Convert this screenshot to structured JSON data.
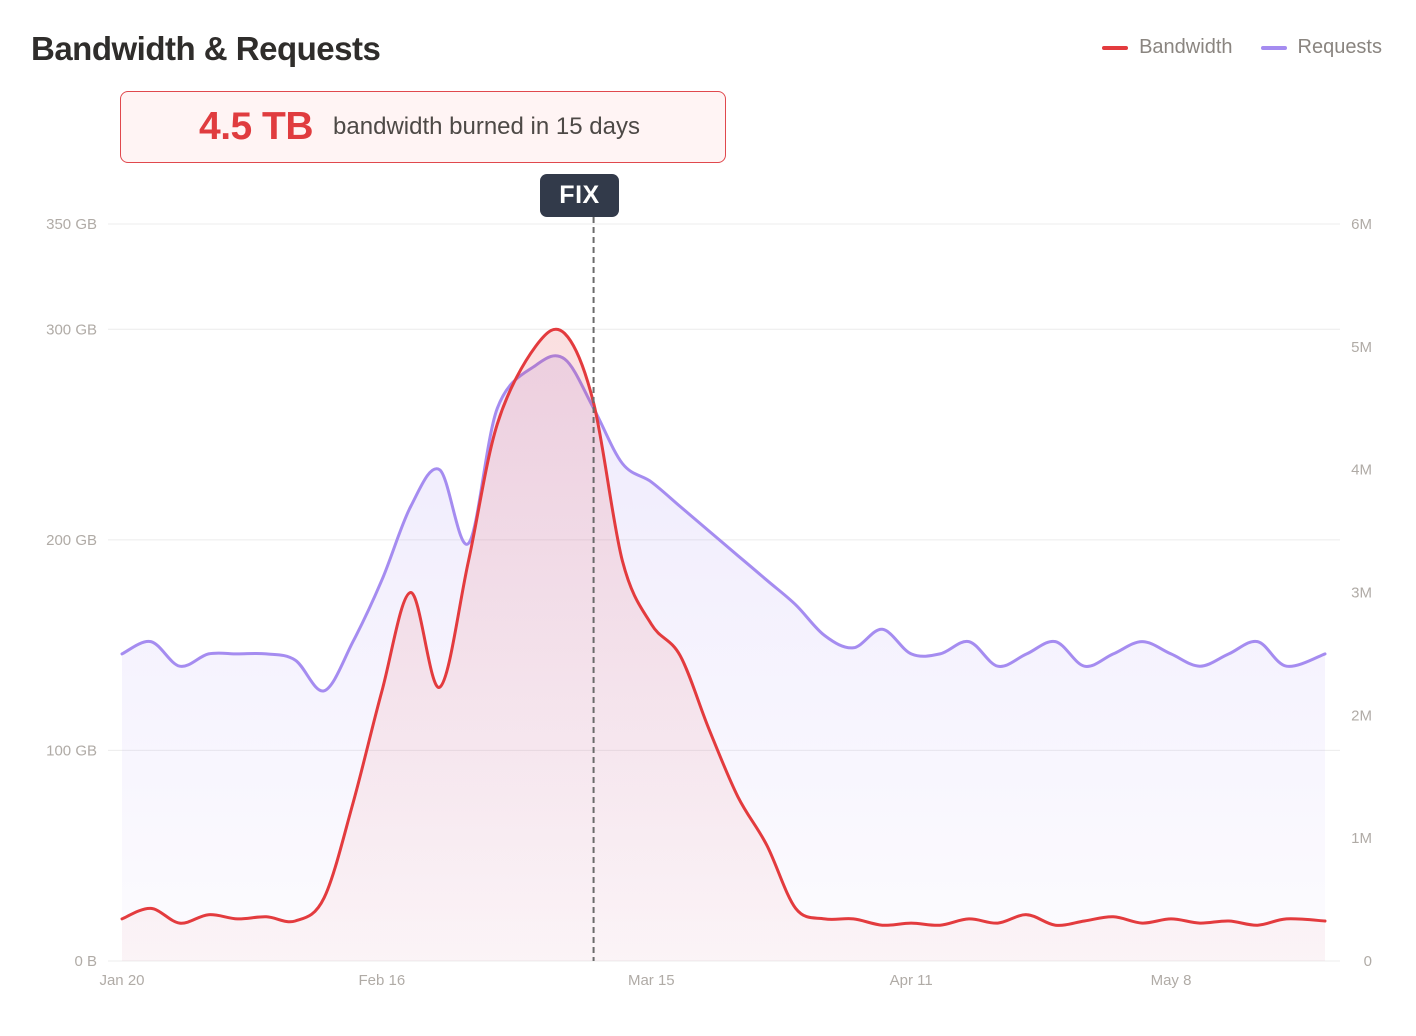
{
  "header": {
    "title": "Bandwidth & Requests"
  },
  "legend": [
    {
      "label": "Bandwidth",
      "color": "#e33b3e"
    },
    {
      "label": "Requests",
      "color": "#a58cf0"
    }
  ],
  "callout": {
    "value": "4.5 TB",
    "text": "bandwidth burned in 15 days"
  },
  "chart_data": {
    "type": "line",
    "x_ticks": [
      "Jan 20",
      "Feb 16",
      "Mar 15",
      "Apr 11",
      "May 8"
    ],
    "y_left": {
      "range": [
        0,
        350
      ],
      "ticks": [
        "0 B",
        "100 GB",
        "200 GB",
        "300 GB",
        "350 GB"
      ]
    },
    "y_right": {
      "range": [
        0,
        6
      ],
      "ticks": [
        "0",
        "1M",
        "2M",
        "3M",
        "4M",
        "5M",
        "6M"
      ]
    },
    "annotation": {
      "label": "FIX",
      "x": "Mar 9",
      "style": "dashed-vertical-line"
    },
    "grid": true,
    "legend_position": "top-right",
    "x_range": [
      "Jan 20",
      "May 24"
    ],
    "series": [
      {
        "name": "Bandwidth",
        "axis": "left",
        "color": "#e33b3e",
        "points": [
          [
            "Jan 20",
            20
          ],
          [
            "Jan 23",
            25
          ],
          [
            "Jan 26",
            18
          ],
          [
            "Jan 29",
            22
          ],
          [
            "Feb 1",
            20
          ],
          [
            "Feb 4",
            21
          ],
          [
            "Feb 7",
            19
          ],
          [
            "Feb 10",
            30
          ],
          [
            "Feb 13",
            75
          ],
          [
            "Feb 16",
            128
          ],
          [
            "Feb 19",
            175
          ],
          [
            "Feb 22",
            130
          ],
          [
            "Feb 25",
            190
          ],
          [
            "Feb 28",
            255
          ],
          [
            "Mar 3",
            292
          ],
          [
            "Mar 6",
            298
          ],
          [
            "Mar 9",
            265
          ],
          [
            "Mar 12",
            190
          ],
          [
            "Mar 15",
            160
          ],
          [
            "Mar 18",
            145
          ],
          [
            "Mar 21",
            110
          ],
          [
            "Mar 24",
            78
          ],
          [
            "Mar 27",
            55
          ],
          [
            "Mar 30",
            25
          ],
          [
            "Apr 2",
            20
          ],
          [
            "Apr 5",
            20
          ],
          [
            "Apr 8",
            17
          ],
          [
            "Apr 11",
            18
          ],
          [
            "Apr 14",
            17
          ],
          [
            "Apr 17",
            20
          ],
          [
            "Apr 20",
            18
          ],
          [
            "Apr 23",
            22
          ],
          [
            "Apr 26",
            17
          ],
          [
            "Apr 29",
            19
          ],
          [
            "May 2",
            21
          ],
          [
            "May 5",
            18
          ],
          [
            "May 8",
            20
          ],
          [
            "May 11",
            18
          ],
          [
            "May 14",
            19
          ],
          [
            "May 17",
            17
          ],
          [
            "May 20",
            20
          ],
          [
            "May 24",
            19
          ]
        ]
      },
      {
        "name": "Requests",
        "axis": "right",
        "color": "#a58cf0",
        "points": [
          [
            "Jan 20",
            2.5
          ],
          [
            "Jan 23",
            2.6
          ],
          [
            "Jan 26",
            2.4
          ],
          [
            "Jan 29",
            2.5
          ],
          [
            "Feb 1",
            2.5
          ],
          [
            "Feb 4",
            2.5
          ],
          [
            "Feb 7",
            2.45
          ],
          [
            "Feb 10",
            2.2
          ],
          [
            "Feb 13",
            2.6
          ],
          [
            "Feb 16",
            3.1
          ],
          [
            "Feb 19",
            3.7
          ],
          [
            "Feb 22",
            4.0
          ],
          [
            "Feb 25",
            3.4
          ],
          [
            "Feb 28",
            4.5
          ],
          [
            "Mar 3",
            4.85
          ],
          [
            "Mar 6",
            4.9
          ],
          [
            "Mar 9",
            4.5
          ],
          [
            "Mar 12",
            4.05
          ],
          [
            "Mar 15",
            3.9
          ],
          [
            "Mar 18",
            3.7
          ],
          [
            "Mar 21",
            3.5
          ],
          [
            "Mar 24",
            3.3
          ],
          [
            "Mar 27",
            3.1
          ],
          [
            "Mar 30",
            2.9
          ],
          [
            "Apr 2",
            2.65
          ],
          [
            "Apr 5",
            2.55
          ],
          [
            "Apr 8",
            2.7
          ],
          [
            "Apr 11",
            2.5
          ],
          [
            "Apr 14",
            2.5
          ],
          [
            "Apr 17",
            2.6
          ],
          [
            "Apr 20",
            2.4
          ],
          [
            "Apr 23",
            2.5
          ],
          [
            "Apr 26",
            2.6
          ],
          [
            "Apr 29",
            2.4
          ],
          [
            "May 2",
            2.5
          ],
          [
            "May 5",
            2.6
          ],
          [
            "May 8",
            2.5
          ],
          [
            "May 11",
            2.4
          ],
          [
            "May 14",
            2.5
          ],
          [
            "May 17",
            2.6
          ],
          [
            "May 20",
            2.4
          ],
          [
            "May 24",
            2.5
          ]
        ]
      }
    ]
  }
}
